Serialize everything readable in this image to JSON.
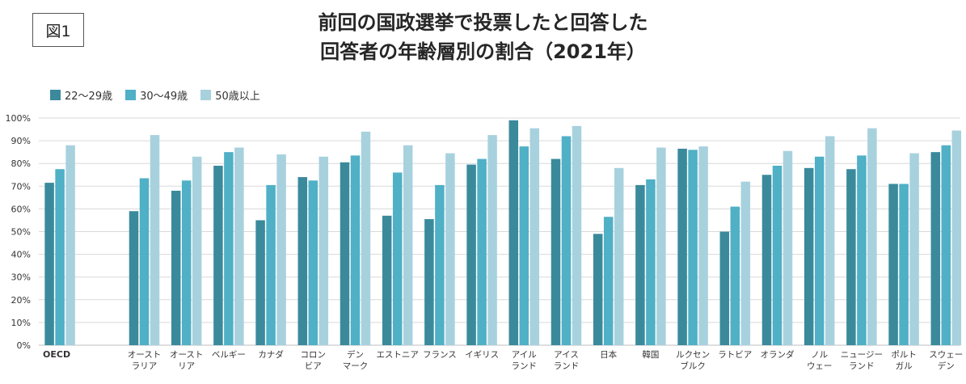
{
  "figure_label": "図1",
  "title_lines": [
    "前回の国政選挙で投票したと回答した",
    "回答者の年齢層別の割合（2021年）"
  ],
  "colors": {
    "s1": "#3a8a9c",
    "s2": "#4fb0c6",
    "s3": "#a8d1de",
    "grid": "#d9d9d9"
  },
  "chart_data": {
    "type": "bar",
    "title": "前回の国政選挙で投票したと回答した回答者の年齢層別の割合（2021年）",
    "ylim": [
      0,
      100
    ],
    "yticks": [
      "0%",
      "10%",
      "20%",
      "30%",
      "40%",
      "50%",
      "60%",
      "70%",
      "80%",
      "90%",
      "100%"
    ],
    "grid": true,
    "legend": "top-left",
    "categories": [
      [
        "OECD"
      ],
      [
        ""
      ],
      [
        "オースト",
        "ラリア"
      ],
      [
        "オースト",
        "リア"
      ],
      [
        "ベルギー"
      ],
      [
        "カナダ"
      ],
      [
        "コロン",
        "ビア"
      ],
      [
        "デン",
        "マーク"
      ],
      [
        "エストニア"
      ],
      [
        "フランス"
      ],
      [
        "イギリス"
      ],
      [
        "アイル",
        "ランド"
      ],
      [
        "アイス",
        "ランド"
      ],
      [
        "日本"
      ],
      [
        "韓国"
      ],
      [
        "ルクセン",
        "ブルク"
      ],
      [
        "ラトビア"
      ],
      [
        "オランダ"
      ],
      [
        "ノル",
        "ウェー"
      ],
      [
        "ニュージー",
        "ランド"
      ],
      [
        "ポルト",
        "ガル"
      ],
      [
        "スウェー",
        "デン"
      ]
    ],
    "series": [
      {
        "name": "22～29歳",
        "values": [
          71.5,
          null,
          59,
          68,
          79,
          55,
          74,
          80.5,
          57,
          55.5,
          79.5,
          99,
          82,
          49,
          70.5,
          86.5,
          50,
          75,
          78,
          77.5,
          71,
          85
        ]
      },
      {
        "name": "30～49歳",
        "values": [
          77.5,
          null,
          73.5,
          72.5,
          85,
          70.5,
          72.5,
          83.5,
          76,
          70.5,
          82,
          87.5,
          92,
          56.5,
          73,
          86,
          61,
          79,
          83,
          83.5,
          71,
          88
        ]
      },
      {
        "name": "50歳以上",
        "values": [
          88,
          null,
          92.5,
          83,
          87,
          84,
          83,
          94,
          88,
          84.5,
          92.5,
          95.5,
          96.5,
          78,
          87,
          87.5,
          72,
          85.5,
          92,
          95.5,
          84.5,
          94.5
        ]
      }
    ]
  }
}
